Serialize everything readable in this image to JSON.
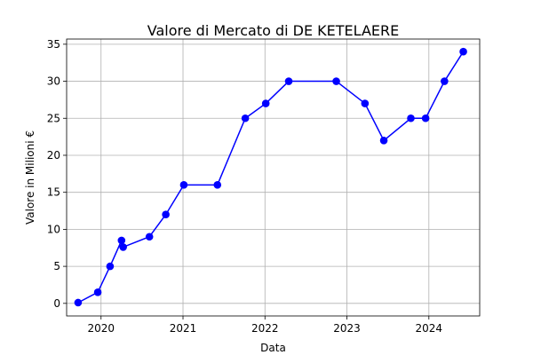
{
  "chart_data": {
    "type": "line",
    "title": "Valore di Mercato di DE KETELAERE",
    "xlabel": "Data",
    "ylabel": "Valore in Milioni €",
    "xlim": [
      2019.58,
      2024.62
    ],
    "ylim": [
      -1.7,
      35.7
    ],
    "xticks": [
      2020,
      2021,
      2022,
      2023,
      2024
    ],
    "xtick_labels": [
      "2020",
      "2021",
      "2022",
      "2023",
      "2024"
    ],
    "yticks": [
      0,
      5,
      10,
      15,
      20,
      25,
      30,
      35
    ],
    "ytick_labels": [
      "0",
      "5",
      "10",
      "15",
      "20",
      "25",
      "30",
      "35"
    ],
    "grid": true,
    "legend": false,
    "color": "#0000ff",
    "series": [
      {
        "x": [
          2019.72,
          2019.96,
          2020.11,
          2020.25,
          2020.27,
          2020.59,
          2020.79,
          2021.01,
          2021.42,
          2021.76,
          2022.01,
          2022.29,
          2022.87,
          2023.22,
          2023.45,
          2023.78,
          2023.96,
          2024.19,
          2024.42
        ],
        "y": [
          0.1,
          1.5,
          5,
          8.5,
          7.6,
          9,
          12,
          16,
          16,
          25,
          27,
          30,
          30,
          27,
          22,
          25,
          25,
          30,
          34
        ]
      }
    ]
  }
}
